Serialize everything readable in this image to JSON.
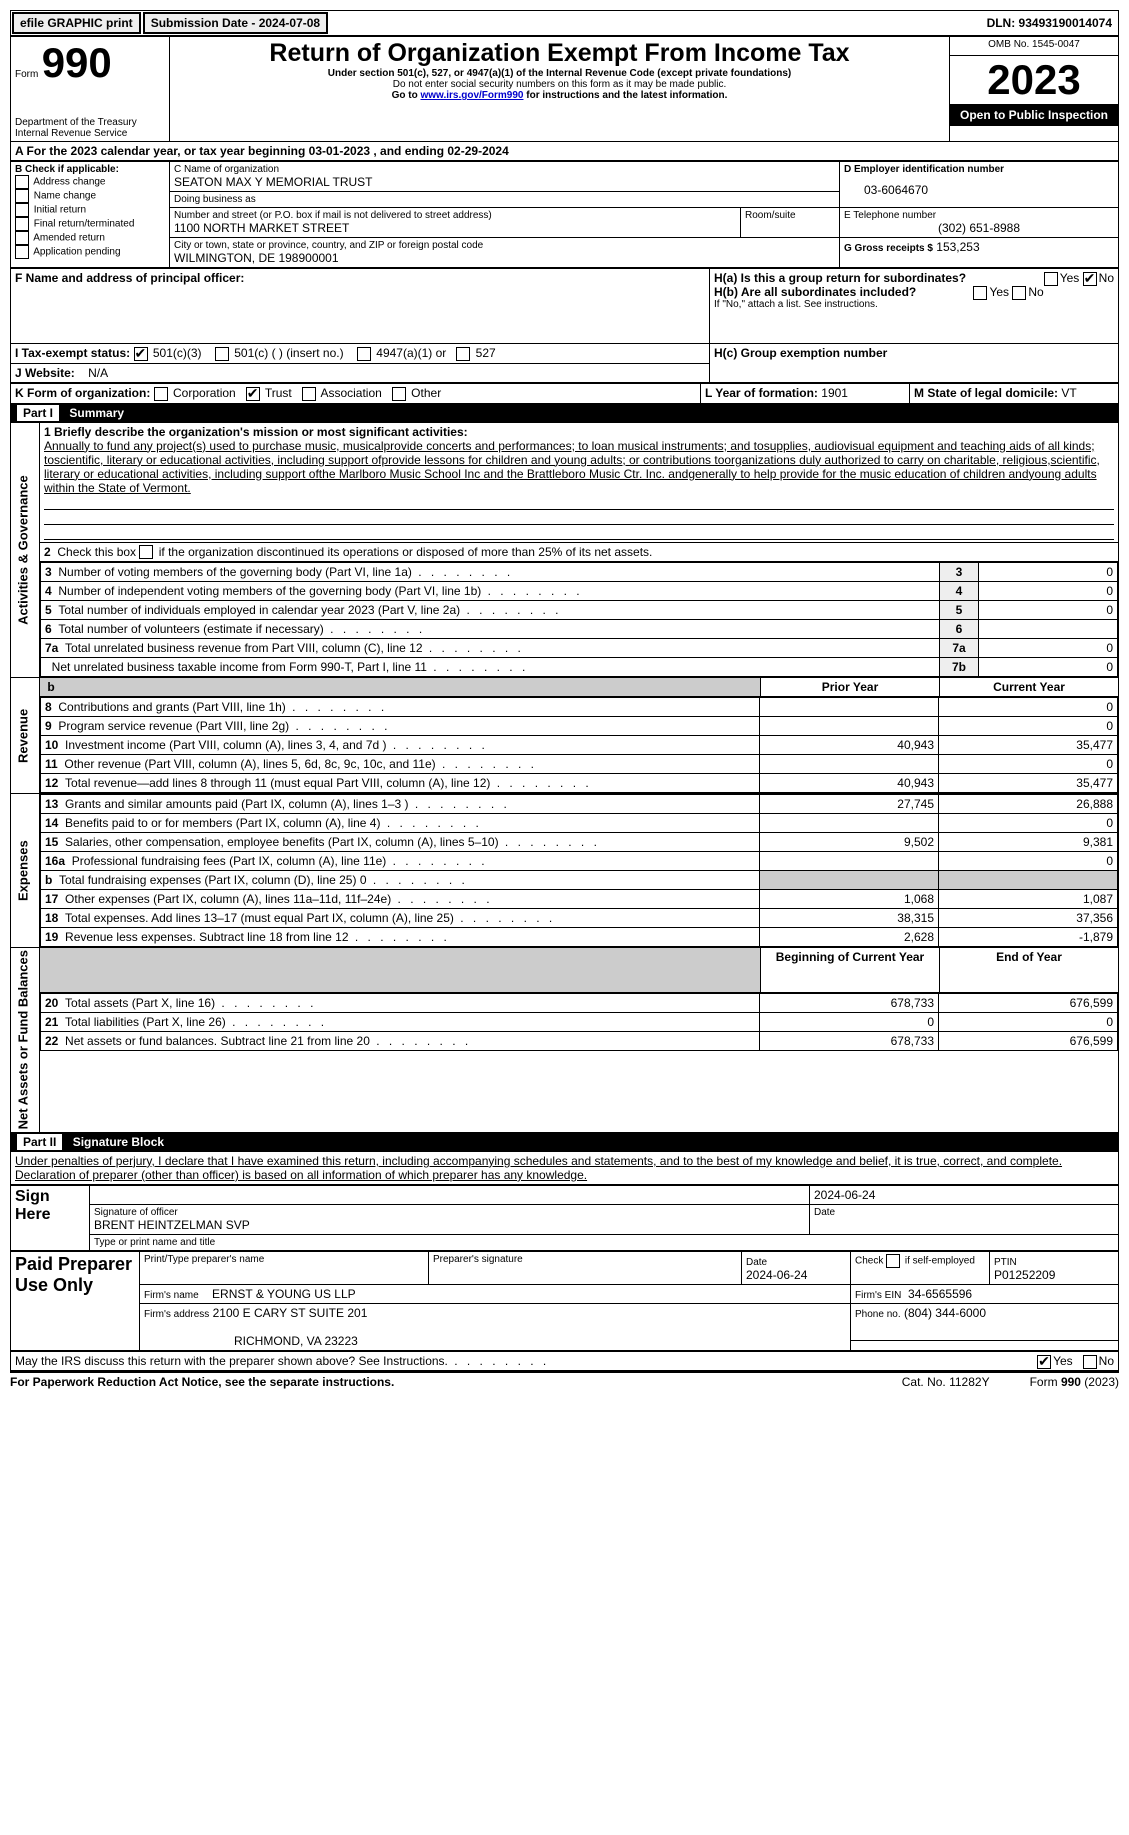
{
  "topbar": {
    "efile": "efile GRAPHIC print",
    "submission_label": "Submission Date - 2024-07-08",
    "dln_label": "DLN: 93493190014074"
  },
  "header": {
    "form_word": "Form",
    "form_number": "990",
    "title": "Return of Organization Exempt From Income Tax",
    "subtitle1": "Under section 501(c), 527, or 4947(a)(1) of the Internal Revenue Code (except private foundations)",
    "subtitle2": "Do not enter social security numbers on this form as it may be made public.",
    "subtitle3_prefix": "Go to ",
    "subtitle3_link": "www.irs.gov/Form990",
    "subtitle3_suffix": " for instructions and the latest information.",
    "dept": "Department of the Treasury",
    "irs": "Internal Revenue Service",
    "omb": "OMB No. 1545-0047",
    "year": "2023",
    "open": "Open to Public Inspection"
  },
  "sectionA": {
    "line": "A For the 2023 calendar year, or tax year beginning 03-01-2023    , and ending 02-29-2024"
  },
  "boxB": {
    "label": "B Check if applicable:",
    "opts": [
      "Address change",
      "Name change",
      "Initial return",
      "Final return/terminated",
      "Amended return",
      "Application pending"
    ]
  },
  "boxC": {
    "name_label": "C Name of organization",
    "name": "SEATON MAX Y MEMORIAL TRUST",
    "dba_label": "Doing business as",
    "dba": "",
    "street_label": "Number and street (or P.O. box if mail is not delivered to street address)",
    "room_label": "Room/suite",
    "street": "1100 NORTH MARKET STREET",
    "city_label": "City or town, state or province, country, and ZIP or foreign postal code",
    "city": "WILMINGTON, DE  198900001"
  },
  "boxD": {
    "label": "D Employer identification number",
    "value": "03-6064670"
  },
  "boxE": {
    "label": "E Telephone number",
    "value": "(302) 651-8988"
  },
  "boxG": {
    "label": "G Gross receipts $",
    "value": "153,253"
  },
  "boxF": {
    "label": "F  Name and address of principal officer:",
    "value": ""
  },
  "boxH": {
    "a_label": "H(a)  Is this a group return for subordinates?",
    "b_label": "H(b)  Are all subordinates included?",
    "b_note": "If \"No,\" attach a list. See instructions.",
    "c_label": "H(c)  Group exemption number",
    "yes": "Yes",
    "no": "No"
  },
  "boxI": {
    "label": "I    Tax-exempt status:",
    "o1": "501(c)(3)",
    "o2": "501(c) (  ) (insert no.)",
    "o3": "4947(a)(1) or",
    "o4": "527"
  },
  "boxJ": {
    "label": "J   Website:",
    "value": "N/A"
  },
  "boxK": {
    "label": "K Form of organization:",
    "o1": "Corporation",
    "o2": "Trust",
    "o3": "Association",
    "o4": "Other"
  },
  "boxL": {
    "label": "L Year of formation:",
    "value": "1901"
  },
  "boxM": {
    "label": "M State of legal domicile:",
    "value": "VT"
  },
  "part1": {
    "header_part": "Part I",
    "header_title": "Summary",
    "line1_label": "1  Briefly describe the organization's mission or most significant activities:",
    "line1_text": "Annually to fund any project(s) used to purchase music, musicalprovide concerts and performances; to loan musical instruments; and tosupplies, audiovisual equipment and teaching aids of all kinds; toscientific, literary or educational activities, including support ofprovide lessons for children and young adults; or contributions toorganizations duly authorized to carry on charitable, religious,scientific, literary or educational activities, including support ofthe Marlboro Music School Inc and the Brattleboro Music Ctr. Inc. andgenerally to help provide for the music education of children andyoung adults within the State of Vermont.",
    "line2": "2   Check this box         if the organization discontinued its operations or disposed of more than 25% of its net assets.",
    "rows_ag": [
      {
        "n": "3",
        "desc": "Number of voting members of the governing body (Part VI, line 1a)",
        "idx": "3",
        "val": "0"
      },
      {
        "n": "4",
        "desc": "Number of independent voting members of the governing body (Part VI, line 1b)",
        "idx": "4",
        "val": "0"
      },
      {
        "n": "5",
        "desc": "Total number of individuals employed in calendar year 2023 (Part V, line 2a)",
        "idx": "5",
        "val": "0"
      },
      {
        "n": "6",
        "desc": "Total number of volunteers (estimate if necessary)",
        "idx": "6",
        "val": ""
      },
      {
        "n": "7a",
        "desc": "Total unrelated business revenue from Part VIII, column (C), line 12",
        "idx": "7a",
        "val": "0"
      },
      {
        "n": "",
        "desc": "Net unrelated business taxable income from Form 990-T, Part I, line 11",
        "idx": "7b",
        "val": "0"
      }
    ],
    "col_prior": "Prior Year",
    "col_current": "Current Year",
    "revenue_label": "Revenue",
    "expenses_label": "Expenses",
    "netassets_label": "Net Assets or Fund Balances",
    "ag_label": "Activities & Governance",
    "rows_rev": [
      {
        "n": "8",
        "desc": "Contributions and grants (Part VIII, line 1h)",
        "p": "",
        "c": "0"
      },
      {
        "n": "9",
        "desc": "Program service revenue (Part VIII, line 2g)",
        "p": "",
        "c": "0"
      },
      {
        "n": "10",
        "desc": "Investment income (Part VIII, column (A), lines 3, 4, and 7d )",
        "p": "40,943",
        "c": "35,477"
      },
      {
        "n": "11",
        "desc": "Other revenue (Part VIII, column (A), lines 5, 6d, 8c, 9c, 10c, and 11e)",
        "p": "",
        "c": "0"
      },
      {
        "n": "12",
        "desc": "Total revenue—add lines 8 through 11 (must equal Part VIII, column (A), line 12)",
        "p": "40,943",
        "c": "35,477"
      }
    ],
    "rows_exp": [
      {
        "n": "13",
        "desc": "Grants and similar amounts paid (Part IX, column (A), lines 1–3 )",
        "p": "27,745",
        "c": "26,888"
      },
      {
        "n": "14",
        "desc": "Benefits paid to or for members (Part IX, column (A), line 4)",
        "p": "",
        "c": "0"
      },
      {
        "n": "15",
        "desc": "Salaries, other compensation, employee benefits (Part IX, column (A), lines 5–10)",
        "p": "9,502",
        "c": "9,381"
      },
      {
        "n": "16a",
        "desc": "Professional fundraising fees (Part IX, column (A), line 11e)",
        "p": "",
        "c": "0"
      },
      {
        "n": "b",
        "desc": "Total fundraising expenses (Part IX, column (D), line 25) 0",
        "p": "SHADE",
        "c": "SHADE"
      },
      {
        "n": "17",
        "desc": "Other expenses (Part IX, column (A), lines 11a–11d, 11f–24e)",
        "p": "1,068",
        "c": "1,087"
      },
      {
        "n": "18",
        "desc": "Total expenses. Add lines 13–17 (must equal Part IX, column (A), line 25)",
        "p": "38,315",
        "c": "37,356"
      },
      {
        "n": "19",
        "desc": "Revenue less expenses. Subtract line 18 from line 12",
        "p": "2,628",
        "c": "-1,879"
      }
    ],
    "col_begin": "Beginning of Current Year",
    "col_end": "End of Year",
    "rows_na": [
      {
        "n": "20",
        "desc": "Total assets (Part X, line 16)",
        "p": "678,733",
        "c": "676,599"
      },
      {
        "n": "21",
        "desc": "Total liabilities (Part X, line 26)",
        "p": "0",
        "c": "0"
      },
      {
        "n": "22",
        "desc": "Net assets or fund balances. Subtract line 21 from line 20",
        "p": "678,733",
        "c": "676,599"
      }
    ]
  },
  "part2": {
    "header_part": "Part II",
    "header_title": "Signature Block",
    "perjury": "Under penalties of perjury, I declare that I have examined this return, including accompanying schedules and statements, and to the best of my knowledge and belief, it is true, correct, and complete. Declaration of preparer (other than officer) is based on all information of which preparer has any knowledge.",
    "sign_here": "Sign Here",
    "sig_officer": "Signature of officer",
    "sig_date": "Date",
    "sig_date_val": "2024-06-24",
    "officer_name": "BRENT HEINTZELMAN  SVP",
    "type_name": "Type or print name and title",
    "paid": "Paid Preparer Use Only",
    "prep_name_label": "Print/Type preparer's name",
    "prep_sig_label": "Preparer's signature",
    "date_label": "Date",
    "date_val": "2024-06-24",
    "check_self": "Check          if self-employed",
    "ptin_label": "PTIN",
    "ptin": "P01252209",
    "firm_name_label": "Firm's name",
    "firm_name": "ERNST & YOUNG US LLP",
    "firm_ein_label": "Firm's EIN",
    "firm_ein": "34-6565596",
    "firm_addr_label": "Firm's address",
    "firm_addr": "2100 E CARY ST SUITE 201",
    "firm_city": "RICHMOND, VA  23223",
    "firm_phone_label": "Phone no.",
    "firm_phone": "(804) 344-6000",
    "discuss": "May the IRS discuss this return with the preparer shown above? See Instructions.",
    "yes": "Yes",
    "no": "No"
  },
  "footer": {
    "pra": "For Paperwork Reduction Act Notice, see the separate instructions.",
    "cat": "Cat. No. 11282Y",
    "form": "Form 990 (2023)"
  }
}
